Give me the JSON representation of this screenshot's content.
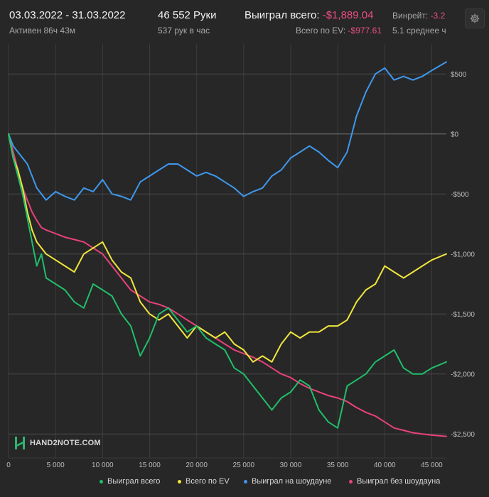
{
  "header": {
    "date_range": "03.03.2022 - 31.03.2022",
    "active_time": "Активен 86ч 43м",
    "hands": "46 552 Руки",
    "hands_per_hour": "537 рук в час",
    "won_total_label": "Выиграл всего:",
    "won_total_value": "-$1,889.04",
    "ev_total_label": "Всего по EV:",
    "ev_total_value": "-$977.61",
    "winrate_label": "Винрейт:",
    "winrate_value": "-3.2",
    "avg_label": "5.1 среднее ч"
  },
  "settings_icon": "gear-icon",
  "logo": {
    "icon": "h2n-logo-icon",
    "text": "HAND2NOTE.COM"
  },
  "colors": {
    "background": "#272727",
    "grid": "#4a4a4a",
    "zero_line": "#7a7a7a",
    "negative": "#ea4f7f"
  },
  "chart_data": {
    "type": "line",
    "xlim": [
      0,
      46552
    ],
    "ylim": [
      -2700,
      750
    ],
    "x_ticks": [
      {
        "value": 0,
        "label": "0"
      },
      {
        "value": 5000,
        "label": "5 000"
      },
      {
        "value": 10000,
        "label": "10 000"
      },
      {
        "value": 15000,
        "label": "15 000"
      },
      {
        "value": 20000,
        "label": "20 000"
      },
      {
        "value": 25000,
        "label": "25 000"
      },
      {
        "value": 30000,
        "label": "30 000"
      },
      {
        "value": 35000,
        "label": "35 000"
      },
      {
        "value": 40000,
        "label": "40 000"
      },
      {
        "value": 45000,
        "label": "45 000"
      }
    ],
    "y_ticks": [
      {
        "value": 500,
        "label": "$500"
      },
      {
        "value": 0,
        "label": "$0"
      },
      {
        "value": -500,
        "label": "-$500"
      },
      {
        "value": -1000,
        "label": "-$1,000"
      },
      {
        "value": -1500,
        "label": "-$1,500"
      },
      {
        "value": -2000,
        "label": "-$2,000"
      },
      {
        "value": -2500,
        "label": "-$2,500"
      }
    ],
    "grid": true,
    "legend_position": "bottom-right",
    "x": [
      0,
      500,
      1000,
      1500,
      2000,
      2500,
      3000,
      3500,
      4000,
      5000,
      6000,
      7000,
      8000,
      9000,
      10000,
      11000,
      12000,
      13000,
      14000,
      15000,
      16000,
      17000,
      18000,
      19000,
      20000,
      21000,
      22000,
      23000,
      24000,
      25000,
      26000,
      27000,
      28000,
      29000,
      30000,
      31000,
      32000,
      33000,
      34000,
      35000,
      36000,
      37000,
      38000,
      39000,
      40000,
      41000,
      42000,
      43000,
      44000,
      45000,
      46552
    ],
    "series": [
      {
        "name": "Выиграл всего",
        "color": "#1fbf6a",
        "values": [
          0,
          -200,
          -350,
          -500,
          -700,
          -900,
          -1100,
          -1000,
          -1200,
          -1250,
          -1300,
          -1400,
          -1450,
          -1250,
          -1300,
          -1350,
          -1500,
          -1600,
          -1850,
          -1700,
          -1500,
          -1450,
          -1550,
          -1650,
          -1600,
          -1700,
          -1750,
          -1800,
          -1950,
          -2000,
          -2100,
          -2200,
          -2300,
          -2200,
          -2150,
          -2050,
          -2100,
          -2300,
          -2400,
          -2450,
          -2100,
          -2050,
          -2000,
          -1900,
          -1850,
          -1800,
          -1950,
          -2000,
          -2000,
          -1950,
          -1900
        ]
      },
      {
        "name": "Всего по EV",
        "color": "#f0e63c",
        "values": [
          0,
          -200,
          -300,
          -450,
          -650,
          -800,
          -900,
          -950,
          -1000,
          -1050,
          -1100,
          -1150,
          -1000,
          -950,
          -900,
          -1050,
          -1150,
          -1200,
          -1400,
          -1500,
          -1550,
          -1500,
          -1600,
          -1700,
          -1600,
          -1650,
          -1700,
          -1650,
          -1750,
          -1800,
          -1900,
          -1850,
          -1900,
          -1750,
          -1650,
          -1700,
          -1650,
          -1650,
          -1600,
          -1600,
          -1550,
          -1400,
          -1300,
          -1250,
          -1100,
          -1150,
          -1200,
          -1150,
          -1100,
          -1050,
          -1000
        ]
      },
      {
        "name": "Выиграл на шоудауне",
        "color": "#3f98ec",
        "values": [
          0,
          -100,
          -150,
          -200,
          -250,
          -350,
          -450,
          -500,
          -550,
          -480,
          -520,
          -550,
          -450,
          -480,
          -380,
          -500,
          -520,
          -550,
          -400,
          -350,
          -300,
          -250,
          -250,
          -300,
          -350,
          -320,
          -350,
          -400,
          -450,
          -520,
          -480,
          -450,
          -350,
          -300,
          -200,
          -150,
          -100,
          -150,
          -220,
          -280,
          -150,
          150,
          350,
          500,
          550,
          450,
          480,
          450,
          480,
          530,
          600
        ]
      },
      {
        "name": "Выиграл без шоудауна",
        "color": "#e8427a",
        "values": [
          0,
          -150,
          -300,
          -450,
          -550,
          -650,
          -720,
          -780,
          -800,
          -830,
          -860,
          -880,
          -900,
          -950,
          -1000,
          -1100,
          -1200,
          -1300,
          -1350,
          -1400,
          -1420,
          -1450,
          -1500,
          -1550,
          -1600,
          -1650,
          -1700,
          -1750,
          -1800,
          -1830,
          -1860,
          -1900,
          -1950,
          -2000,
          -2030,
          -2080,
          -2120,
          -2150,
          -2180,
          -2200,
          -2230,
          -2280,
          -2320,
          -2350,
          -2400,
          -2450,
          -2470,
          -2490,
          -2500,
          -2510,
          -2520
        ]
      }
    ]
  }
}
